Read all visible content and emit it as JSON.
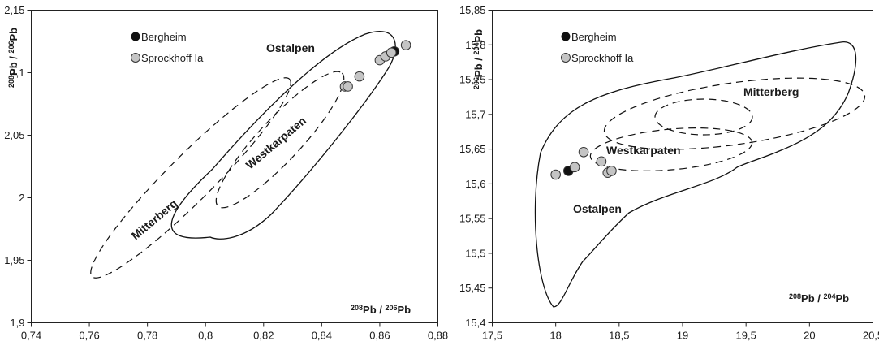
{
  "chart_data": [
    {
      "type": "scatter",
      "xlabel": "208Pb / 206Pb",
      "ylabel": "208Pb / 206Pb",
      "xlim": [
        0.74,
        0.88
      ],
      "ylim": [
        1.9,
        2.15
      ],
      "xticks": [
        "0,74",
        "0,76",
        "0,78",
        "0,8",
        "0,82",
        "0,84",
        "0,86",
        "0,88"
      ],
      "yticks": [
        "1,9",
        "1,95",
        "2",
        "2,05",
        "2,1",
        "2,15"
      ],
      "legend": {
        "position": "top-left",
        "entries": [
          "Bergheim",
          "Sprockhoff Ia"
        ]
      },
      "series": [
        {
          "name": "Bergheim",
          "color": "#111111",
          "points": [
            [
              0.865,
              2.117
            ]
          ]
        },
        {
          "name": "Sprockhoff Ia",
          "color": "#c4c4c4",
          "points": [
            [
              0.848,
              2.089
            ],
            [
              0.849,
              2.089
            ],
            [
              0.853,
              2.097
            ],
            [
              0.86,
              2.11
            ],
            [
              0.862,
              2.113
            ],
            [
              0.864,
              2.116
            ],
            [
              0.869,
              2.122
            ]
          ]
        }
      ],
      "regions": [
        "Ostalpen",
        "Westkarpaten",
        "Mitterberg"
      ]
    },
    {
      "type": "scatter",
      "xlabel": "208Pb / 204Pb",
      "ylabel": "206Pb / 204Pb",
      "xlim": [
        17.5,
        20.5
      ],
      "ylim": [
        15.4,
        15.9
      ],
      "xticks": [
        "17,5",
        "18",
        "18,5",
        "19",
        "19,5",
        "20",
        "20,5"
      ],
      "yticks": [
        "15,4",
        "15,45",
        "15,5",
        "15,55",
        "15,6",
        "15,65",
        "15,7",
        "15,75",
        "15,8",
        "15,85"
      ],
      "legend": {
        "position": "top-left",
        "entries": [
          "Bergheim",
          "Sprockhoff Ia"
        ]
      },
      "series": [
        {
          "name": "Bergheim",
          "color": "#111111",
          "points": [
            [
              18.1,
              15.643
            ]
          ]
        },
        {
          "name": "Sprockhoff Ia",
          "color": "#c4c4c4",
          "points": [
            [
              18.0,
              15.637
            ],
            [
              18.15,
              15.649
            ],
            [
              18.22,
              15.673
            ],
            [
              18.36,
              15.658
            ],
            [
              18.41,
              15.64
            ],
            [
              18.44,
              15.643
            ]
          ]
        }
      ],
      "regions": [
        "Mitterberg",
        "Westkarpaten",
        "Ostalpen"
      ]
    }
  ]
}
